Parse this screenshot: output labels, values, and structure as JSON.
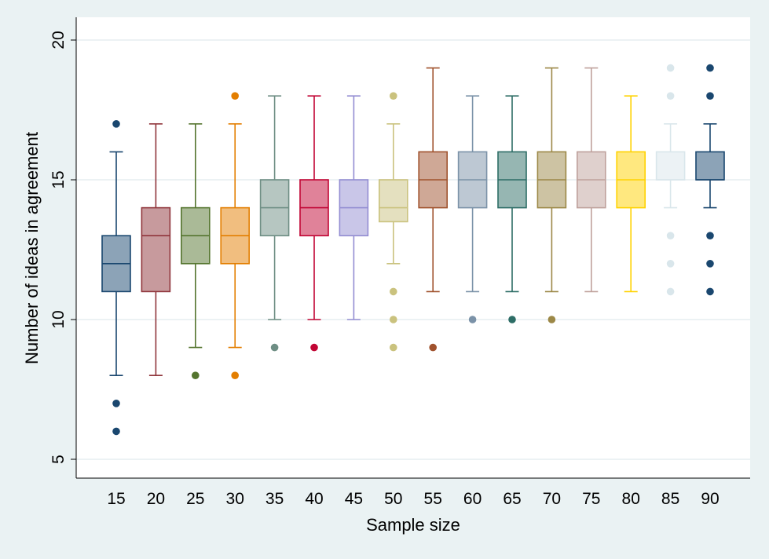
{
  "chart_data": {
    "type": "box",
    "title": "",
    "xlabel": "Sample size",
    "ylabel": "Number of ideas in agreement",
    "ylim": [
      4.2,
      20.6
    ],
    "yticks": [
      5,
      10,
      15,
      20
    ],
    "grid": true,
    "categories": [
      "15",
      "20",
      "25",
      "30",
      "35",
      "40",
      "45",
      "50",
      "55",
      "60",
      "65",
      "70",
      "75",
      "80",
      "85",
      "90"
    ],
    "boxes": [
      {
        "whislo": 8,
        "q1": 11,
        "med": 12,
        "q3": 13,
        "whishi": 16,
        "fliers": [
          6,
          7,
          17
        ],
        "color": "#1a476f",
        "fill": "#8ca3b7"
      },
      {
        "whislo": 8,
        "q1": 11,
        "med": 13,
        "q3": 14,
        "whishi": 17,
        "fliers": [],
        "color": "#90353b",
        "fill": "#c79a9d"
      },
      {
        "whislo": 9,
        "q1": 12,
        "med": 13,
        "q3": 14,
        "whishi": 17,
        "fliers": [
          8
        ],
        "color": "#55752f",
        "fill": "#aaba97"
      },
      {
        "whislo": 9,
        "q1": 12,
        "med": 13,
        "q3": 14,
        "whishi": 17,
        "fliers": [
          8,
          18
        ],
        "color": "#e37e00",
        "fill": "#f1be7f"
      },
      {
        "whislo": 10,
        "q1": 13,
        "med": 14,
        "q3": 15,
        "whishi": 18,
        "fliers": [
          9
        ],
        "color": "#6e8e84",
        "fill": "#b6c6c1"
      },
      {
        "whislo": 10,
        "q1": 13,
        "med": 14,
        "q3": 15,
        "whishi": 18,
        "fliers": [
          9
        ],
        "color": "#c10534",
        "fill": "#e08299"
      },
      {
        "whislo": 10,
        "q1": 13,
        "med": 14,
        "q3": 15,
        "whishi": 18,
        "fliers": [],
        "color": "#938dd2",
        "fill": "#c9c6e8"
      },
      {
        "whislo": 12,
        "q1": 13.5,
        "med": 14,
        "q3": 15,
        "whishi": 17,
        "fliers": [
          9,
          10,
          11,
          18
        ],
        "color": "#cac27e",
        "fill": "#e4e0bf"
      },
      {
        "whislo": 11,
        "q1": 14,
        "med": 15,
        "q3": 16,
        "whishi": 19,
        "fliers": [
          9
        ],
        "color": "#a0522d",
        "fill": "#cfa896"
      },
      {
        "whislo": 11,
        "q1": 14,
        "med": 15,
        "q3": 16,
        "whishi": 18,
        "fliers": [
          10
        ],
        "color": "#7b92a8",
        "fill": "#bdc8d3"
      },
      {
        "whislo": 11,
        "q1": 14,
        "med": 15,
        "q3": 16,
        "whishi": 18,
        "fliers": [
          10
        ],
        "color": "#2d6d66",
        "fill": "#96b6b2"
      },
      {
        "whislo": 11,
        "q1": 14,
        "med": 15,
        "q3": 16,
        "whishi": 19,
        "fliers": [
          10
        ],
        "color": "#9c8847",
        "fill": "#cdc3a3"
      },
      {
        "whislo": 11,
        "q1": 14,
        "med": 15,
        "q3": 16,
        "whishi": 19,
        "fliers": [],
        "color": "#bfa19c",
        "fill": "#dfd0cd"
      },
      {
        "whislo": 11,
        "q1": 14,
        "med": 15,
        "q3": 16,
        "whishi": 18,
        "fliers": [],
        "color": "#ffd200",
        "fill": "#ffe87f"
      },
      {
        "whislo": 14,
        "q1": 15,
        "med": 15,
        "q3": 16,
        "whishi": 17,
        "fliers": [
          11,
          12,
          13,
          18,
          19
        ],
        "color": "#d9e6eb",
        "fill": "#ecf2f5"
      },
      {
        "whislo": 14,
        "q1": 15,
        "med": 15,
        "q3": 16,
        "whishi": 17,
        "fliers": [
          11,
          12,
          13,
          18,
          19
        ],
        "color": "#1a476f",
        "fill": "#8ca3b7"
      }
    ]
  }
}
